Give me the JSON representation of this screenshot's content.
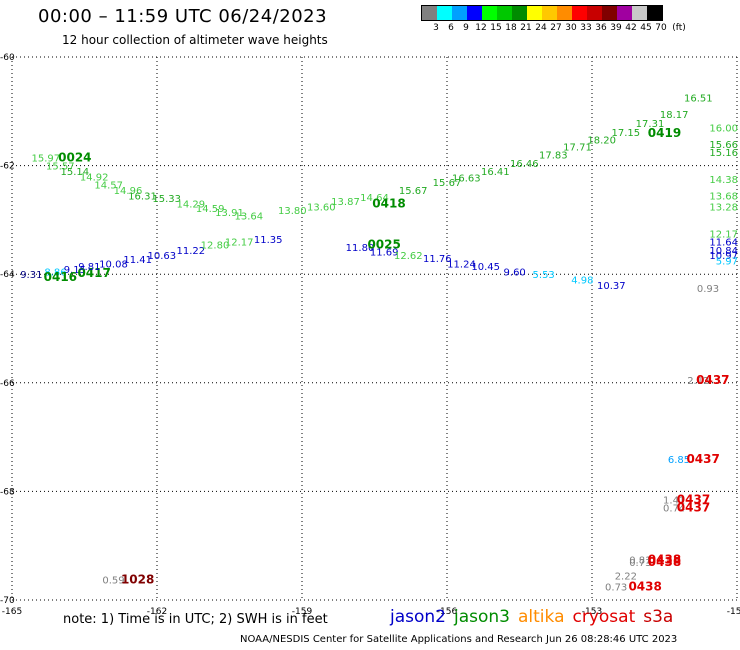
{
  "title": "00:00 – 11:59 UTC 06/24/2023",
  "subtitle": "12 hour collection of altimeter wave heights",
  "colorbar": {
    "unit": "(ft)",
    "labels": [
      "3",
      "6",
      "9",
      "12",
      "15",
      "18",
      "21",
      "24",
      "27",
      "30",
      "33",
      "36",
      "39",
      "42",
      "45",
      "70"
    ],
    "colors": [
      "#808080",
      "#00ffff",
      "#00a0ff",
      "#0000ff",
      "#00ff00",
      "#00c800",
      "#008c00",
      "#ffff00",
      "#ffc800",
      "#ff8c00",
      "#ff0000",
      "#c80000",
      "#800000",
      "#a000a0",
      "#c8c8c8",
      "#000000"
    ]
  },
  "footnote": "note: 1) Time is in UTC; 2) SWH is in feet",
  "credit": "NOAA/NESDIS Center for Satellite Applications and Research   Jun 26 08:28:46 UTC 2023",
  "legend": [
    {
      "name": "jason2",
      "color": "#0000c8"
    },
    {
      "name": "jason3",
      "color": "#008c00"
    },
    {
      "name": "altika",
      "color": "#ff8c00"
    },
    {
      "name": "cryosat",
      "color": "#e00000"
    },
    {
      "name": "s3a",
      "color": "#c80000"
    }
  ],
  "map": {
    "lon_range": [
      -165,
      -150
    ],
    "lat_range": [
      -70,
      -60
    ],
    "lon_ticks": [
      "-165",
      "-162",
      "-159",
      "-156",
      "-153",
      "-150"
    ],
    "lat_ticks": [
      "-60",
      "-62",
      "-64",
      "-66",
      "-68",
      "-70"
    ],
    "grid": true
  },
  "chart_data": {
    "type": "scatter",
    "x_axis": "longitude",
    "y_axis": "latitude",
    "x_range": [
      -165,
      -150
    ],
    "y_range": [
      -70,
      -60
    ],
    "labels": [
      {
        "text": "15.97",
        "lon": -164.3,
        "lat": -61.85,
        "color": "#44cc44"
      },
      {
        "text": "0024",
        "lon": -163.7,
        "lat": -61.85,
        "color": "#008c00",
        "bold": true
      },
      {
        "text": "15.57",
        "lon": -164.0,
        "lat": -62.0,
        "color": "#44cc44"
      },
      {
        "text": "15.14",
        "lon": -163.7,
        "lat": -62.1,
        "color": "#22aa22"
      },
      {
        "text": "14.92",
        "lon": -163.3,
        "lat": -62.2,
        "color": "#44cc44"
      },
      {
        "text": "14.57",
        "lon": -163.0,
        "lat": -62.35,
        "color": "#44cc44"
      },
      {
        "text": "14.96",
        "lon": -162.6,
        "lat": -62.45,
        "color": "#44cc44"
      },
      {
        "text": "16.31",
        "lon": -162.3,
        "lat": -62.55,
        "color": "#22aa22"
      },
      {
        "text": "15.33",
        "lon": -161.8,
        "lat": -62.6,
        "color": "#22aa22"
      },
      {
        "text": "14.29",
        "lon": -161.3,
        "lat": -62.7,
        "color": "#44cc44"
      },
      {
        "text": "14.59",
        "lon": -160.9,
        "lat": -62.78,
        "color": "#44cc44"
      },
      {
        "text": "13.91",
        "lon": -160.5,
        "lat": -62.85,
        "color": "#44cc44"
      },
      {
        "text": "13.64",
        "lon": -160.1,
        "lat": -62.92,
        "color": "#44cc44"
      },
      {
        "text": "13.80",
        "lon": -159.2,
        "lat": -62.82,
        "color": "#44cc44"
      },
      {
        "text": "13.60",
        "lon": -158.6,
        "lat": -62.75,
        "color": "#44cc44"
      },
      {
        "text": "13.87",
        "lon": -158.1,
        "lat": -62.65,
        "color": "#44cc44"
      },
      {
        "text": "14.64",
        "lon": -157.5,
        "lat": -62.58,
        "color": "#44cc44"
      },
      {
        "text": "0418",
        "lon": -157.2,
        "lat": -62.7,
        "color": "#008c00",
        "bold": true
      },
      {
        "text": "15.67",
        "lon": -156.7,
        "lat": -62.45,
        "color": "#22aa22"
      },
      {
        "text": "15.67",
        "lon": -156.0,
        "lat": -62.3,
        "color": "#22aa22"
      },
      {
        "text": "16.63",
        "lon": -155.6,
        "lat": -62.22,
        "color": "#22aa22"
      },
      {
        "text": "16.41",
        "lon": -155.0,
        "lat": -62.1,
        "color": "#22aa22"
      },
      {
        "text": "16.46",
        "lon": -154.4,
        "lat": -61.95,
        "color": "#22aa22"
      },
      {
        "text": "17.83",
        "lon": -153.8,
        "lat": -61.8,
        "color": "#22aa22"
      },
      {
        "text": "17.71",
        "lon": -153.3,
        "lat": -61.65,
        "color": "#22aa22"
      },
      {
        "text": "18.20",
        "lon": -152.8,
        "lat": -61.52,
        "color": "#22aa22"
      },
      {
        "text": "17.15",
        "lon": -152.3,
        "lat": -61.38,
        "color": "#22aa22"
      },
      {
        "text": "17.31",
        "lon": -151.8,
        "lat": -61.22,
        "color": "#22aa22"
      },
      {
        "text": "0419",
        "lon": -151.5,
        "lat": -61.4,
        "color": "#008c00",
        "bold": true
      },
      {
        "text": "18.17",
        "lon": -151.3,
        "lat": -61.05,
        "color": "#22aa22"
      },
      {
        "text": "16.51",
        "lon": -150.8,
        "lat": -60.75,
        "color": "#22aa22"
      },
      {
        "text": "16.00",
        "lon": -150.2,
        "lat": -61.3,
        "color": "#44cc44"
      },
      {
        "text": "15.66",
        "lon": -150.2,
        "lat": -61.6,
        "color": "#22aa22"
      },
      {
        "text": "15.16",
        "lon": -150.2,
        "lat": -61.75,
        "color": "#22aa22"
      },
      {
        "text": "14.38",
        "lon": -150.2,
        "lat": -62.25,
        "color": "#44cc44"
      },
      {
        "text": "13.68",
        "lon": -150.2,
        "lat": -62.55,
        "color": "#44cc44"
      },
      {
        "text": "13.28",
        "lon": -150.2,
        "lat": -62.75,
        "color": "#44cc44"
      },
      {
        "text": "12.17",
        "lon": -150.2,
        "lat": -63.25,
        "color": "#44cc44"
      },
      {
        "text": "11.64",
        "lon": -150.2,
        "lat": -63.4,
        "color": "#0000c8"
      },
      {
        "text": "10.84",
        "lon": -150.2,
        "lat": -63.55,
        "color": "#0000c8"
      },
      {
        "text": "10.97",
        "lon": -150.2,
        "lat": -63.65,
        "color": "#0000c8"
      },
      {
        "text": "5.97",
        "lon": -150.2,
        "lat": -63.75,
        "color": "#00c8ff"
      },
      {
        "text": "9.31",
        "lon": -164.6,
        "lat": -64.0,
        "color": "#000080"
      },
      {
        "text": "8.86",
        "lon": -164.1,
        "lat": -63.95,
        "color": "#00c8ff"
      },
      {
        "text": "9.15",
        "lon": -163.7,
        "lat": -63.9,
        "color": "#0000c8"
      },
      {
        "text": "0416",
        "lon": -164.0,
        "lat": -64.05,
        "color": "#008c00",
        "bold": true
      },
      {
        "text": "0417",
        "lon": -163.3,
        "lat": -63.98,
        "color": "#008c00",
        "bold": true
      },
      {
        "text": "9.81",
        "lon": -163.4,
        "lat": -63.85,
        "color": "#0000c8"
      },
      {
        "text": "10.08",
        "lon": -162.9,
        "lat": -63.8,
        "color": "#0000c8"
      },
      {
        "text": "11.41",
        "lon": -162.4,
        "lat": -63.72,
        "color": "#0000c8"
      },
      {
        "text": "10.63",
        "lon": -161.9,
        "lat": -63.65,
        "color": "#0000c8"
      },
      {
        "text": "11.22",
        "lon": -161.3,
        "lat": -63.55,
        "color": "#0000c8"
      },
      {
        "text": "12.80",
        "lon": -160.8,
        "lat": -63.45,
        "color": "#44cc44"
      },
      {
        "text": "12.17",
        "lon": -160.3,
        "lat": -63.4,
        "color": "#44cc44"
      },
      {
        "text": "11.35",
        "lon": -159.7,
        "lat": -63.35,
        "color": "#0000c8"
      },
      {
        "text": "11.80",
        "lon": -157.8,
        "lat": -63.5,
        "color": "#0000c8"
      },
      {
        "text": "0025",
        "lon": -157.3,
        "lat": -63.45,
        "color": "#008c00",
        "bold": true
      },
      {
        "text": "11.69",
        "lon": -157.3,
        "lat": -63.58,
        "color": "#0000c8"
      },
      {
        "text": "12.62",
        "lon": -156.8,
        "lat": -63.65,
        "color": "#44cc44"
      },
      {
        "text": "11.76",
        "lon": -156.2,
        "lat": -63.7,
        "color": "#0000c8"
      },
      {
        "text": "11.24",
        "lon": -155.7,
        "lat": -63.8,
        "color": "#0000c8"
      },
      {
        "text": "10.45",
        "lon": -155.2,
        "lat": -63.85,
        "color": "#0000c8"
      },
      {
        "text": "9.60",
        "lon": -154.6,
        "lat": -63.95,
        "color": "#0000c8"
      },
      {
        "text": "5.53",
        "lon": -154.0,
        "lat": -64.0,
        "color": "#00c8ff"
      },
      {
        "text": "4.98",
        "lon": -153.2,
        "lat": -64.1,
        "color": "#00c8ff"
      },
      {
        "text": "10.37",
        "lon": -152.6,
        "lat": -64.2,
        "color": "#0000c8"
      },
      {
        "text": "0.93",
        "lon": -150.6,
        "lat": -64.25,
        "color": "#808080"
      },
      {
        "text": "2.12",
        "lon": -150.8,
        "lat": -65.95,
        "color": "#808080"
      },
      {
        "text": "0437",
        "lon": -150.5,
        "lat": -65.95,
        "color": "#e00000",
        "bold": true
      },
      {
        "text": "6.85",
        "lon": -151.2,
        "lat": -67.4,
        "color": "#00a0ff"
      },
      {
        "text": "0437",
        "lon": -150.7,
        "lat": -67.4,
        "color": "#e00000",
        "bold": true
      },
      {
        "text": "1.41",
        "lon": -151.3,
        "lat": -68.15,
        "color": "#808080"
      },
      {
        "text": "0437",
        "lon": -150.9,
        "lat": -68.15,
        "color": "#e00000",
        "bold": true
      },
      {
        "text": "0.74",
        "lon": -151.3,
        "lat": -68.3,
        "color": "#808080"
      },
      {
        "text": "0437",
        "lon": -150.9,
        "lat": -68.3,
        "color": "#e00000",
        "bold": true
      },
      {
        "text": "0.81",
        "lon": -152.0,
        "lat": -69.25,
        "color": "#808080"
      },
      {
        "text": "0438",
        "lon": -151.5,
        "lat": -69.25,
        "color": "#e00000",
        "bold": true
      },
      {
        "text": "0.73",
        "lon": -152.0,
        "lat": -69.3,
        "color": "#808080"
      },
      {
        "text": "0438",
        "lon": -151.5,
        "lat": -69.3,
        "color": "#e00000",
        "bold": true
      },
      {
        "text": "2.22",
        "lon": -152.3,
        "lat": -69.55,
        "color": "#808080"
      },
      {
        "text": "0.73",
        "lon": -152.5,
        "lat": -69.75,
        "color": "#808080"
      },
      {
        "text": "0438",
        "lon": -151.9,
        "lat": -69.75,
        "color": "#e00000",
        "bold": true
      },
      {
        "text": "0.59",
        "lon": -162.9,
        "lat": -69.62,
        "color": "#808080"
      },
      {
        "text": "1028",
        "lon": -162.4,
        "lat": -69.62,
        "color": "#800000",
        "bold": true
      }
    ]
  }
}
